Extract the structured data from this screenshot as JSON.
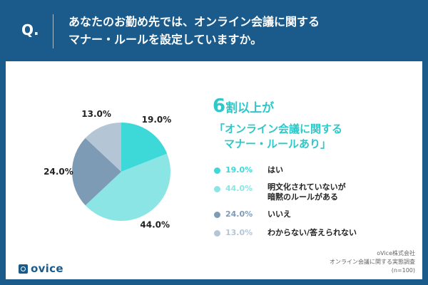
{
  "header": {
    "q_mark": "Q.",
    "question_line1": "あなたのお勤め先では、オンライン会議に関する",
    "question_line2": "マナー・ルールを設定していますか。"
  },
  "headline": {
    "line1_big": "6",
    "line1_text": "割以上が",
    "line2": "「オンライン会議に関する",
    "line3": "マナー・ルールあり」"
  },
  "colors": {
    "background": "#1a5b8c",
    "accent": "#2fc7c7",
    "yes": "#3dd8d8",
    "unwritten": "#8be5e5",
    "no": "#7e9bb6",
    "unknown": "#b4c6d6"
  },
  "chart_data": {
    "type": "pie",
    "start_angle_deg": 0,
    "direction": "clockwise",
    "slices": [
      {
        "label": "はい",
        "value": 19.0,
        "display": "19.0%",
        "color": "#3dd8d8"
      },
      {
        "label": "明文化されていないが暗黙のルールがある",
        "label_line1": "明文化されていないが",
        "label_line2": "暗黙のルールがある",
        "value": 44.0,
        "display": "44.0%",
        "color": "#8be5e5"
      },
      {
        "label": "いいえ",
        "value": 24.0,
        "display": "24.0%",
        "color": "#7e9bb6"
      },
      {
        "label": "わからない/答えられない",
        "value": 13.0,
        "display": "13.0%",
        "color": "#b4c6d6"
      }
    ]
  },
  "brand": {
    "name": "ovice"
  },
  "source": {
    "line1": "oVice株式会社",
    "line2": "オンライン会議に関する実態調査",
    "line3": "(n=100)"
  }
}
